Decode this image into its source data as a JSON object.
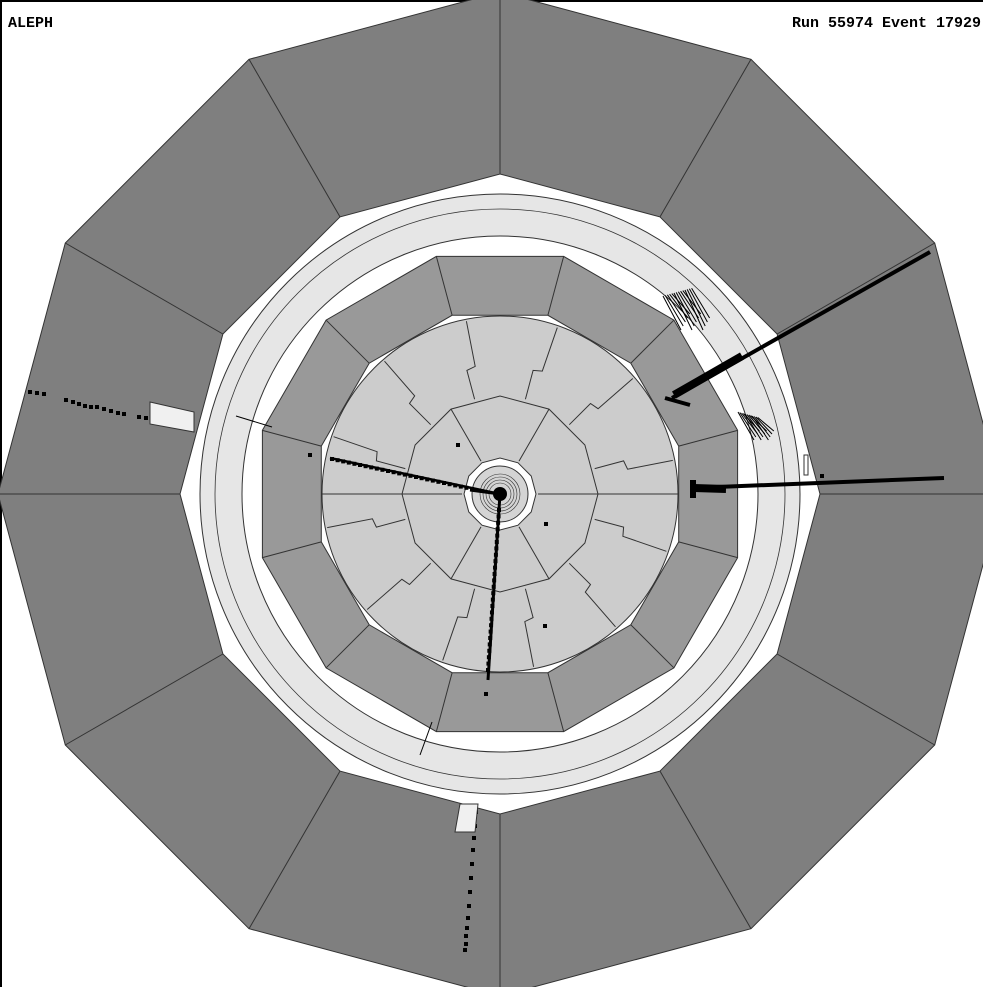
{
  "header": {
    "experiment": "ALEPH",
    "run_event": "Run 55974 Event 17929"
  },
  "colors": {
    "background": "#ffffff",
    "muon_chambers": "#7f7f7f",
    "hadron_calorimeter_gap": "#ffffff",
    "coil": "#e6e6e6",
    "ecal": "#999999",
    "tpc": "#cccccc",
    "inner_detector": "#d4d4d4",
    "outline": "#333333",
    "hits": "#000000",
    "muon_box": "#f0f0f0"
  },
  "geometry_units": "relative"
}
